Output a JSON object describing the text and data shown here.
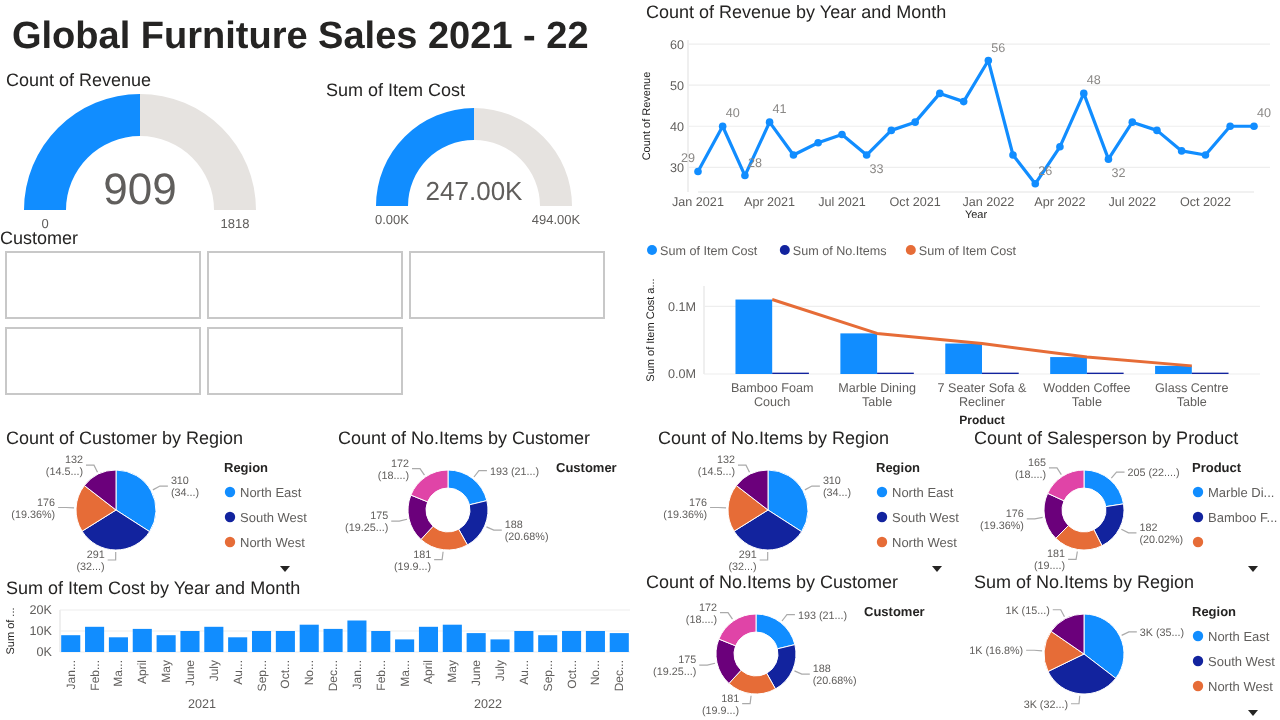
{
  "chart_data": [
    {
      "type": "other",
      "title": "Global Furniture Sales 2021 - 22"
    },
    {
      "type": "donut",
      "title": "Count of Revenue",
      "categories": [
        null,
        null
      ],
      "values": [
        909,
        909
      ],
      "colors": [
        "#118dff",
        "#e6e3e0"
      ],
      "value_labels": [
        "909",
        null
      ],
      "annotations": [
        "0",
        "1818"
      ]
    },
    {
      "type": "donut",
      "title": "Sum of Item Cost",
      "categories": [
        null,
        null
      ],
      "values": [
        247,
        247
      ],
      "colors": [
        "#118dff",
        "#e6e3e0"
      ],
      "value_labels": [
        "247.00K",
        null
      ],
      "annotations": [
        "0.00K",
        "494.00K"
      ]
    },
    {
      "type": "other",
      "title": "Customer",
      "categories": [
        null,
        null,
        null,
        null,
        null
      ]
    },
    {
      "type": "line",
      "title": "Count of Revenue by Year and Month",
      "xlabel": "Year",
      "ylabel": "Count of Revenue",
      "x": [
        "2021-01",
        "2021-02",
        "2021-03",
        "2021-04",
        "2021-05",
        "2021-06",
        "2021-07",
        "2021-08",
        "2021-09",
        "2021-10",
        "2021-11",
        "2021-12",
        "2022-01",
        "2022-02",
        "2022-03",
        "2022-04",
        "2022-05",
        "2022-06",
        "2022-07",
        "2022-08",
        "2022-09",
        "2022-10",
        "2022-11",
        "2022-12"
      ],
      "series": [
        {
          "color": "#118dff",
          "values": [
            29,
            40,
            28,
            41,
            33,
            36,
            38,
            33,
            39,
            41,
            48,
            46,
            56,
            33,
            26,
            35,
            48,
            32,
            41,
            39,
            34,
            33,
            40,
            40
          ]
        }
      ],
      "value_labels": [
        "29",
        "40",
        "28",
        "41",
        null,
        null,
        null,
        "33",
        null,
        null,
        null,
        null,
        "56",
        null,
        "26",
        null,
        "48",
        "32",
        null,
        null,
        null,
        null,
        null,
        "40"
      ],
      "xlim": [
        "2021-01",
        "2022-12"
      ],
      "xticks": [
        {
          "value": "2021-01",
          "label": "Jan 2021"
        },
        {
          "value": "2021-04",
          "label": "Apr 2021"
        },
        {
          "value": "2021-07",
          "label": "Jul 2021"
        },
        {
          "value": "2021-10",
          "label": "Oct 2021"
        },
        {
          "value": "2022-01",
          "label": "Jan 2022"
        },
        {
          "value": "2022-04",
          "label": "Apr 2022"
        },
        {
          "value": "2022-07",
          "label": "Jul 2022"
        },
        {
          "value": "2022-10",
          "label": "Oct 2022"
        }
      ],
      "ylim": [
        24,
        61
      ],
      "yticks": [
        30,
        40,
        50,
        60
      ],
      "grid": "y",
      "marker": "circle",
      "line_style": "solid"
    },
    {
      "type": "bar",
      "xlabel": "Product",
      "ylabel": "Sum of Item Cost a...",
      "categories": [
        "Bamboo Foam Couch",
        "Marble Dining Table",
        "7 Seater Sofa & Recliner",
        "Wodden Coffee Table",
        "Glass Centre Table"
      ],
      "series": [
        {
          "name": "Sum of Item Cost",
          "color": "#118dff",
          "values": [
            0.11,
            0.06,
            0.045,
            0.025,
            0.012
          ]
        },
        {
          "name": "Sum of No.Items",
          "color": "#12239e",
          "values": [
            0.002,
            0.002,
            0.002,
            0.002,
            0.002
          ]
        },
        {
          "name": "Sum of Item Cost",
          "color": "#e66c37",
          "type": "line",
          "values": [
            0.11,
            0.06,
            0.045,
            0.025,
            0.012
          ]
        }
      ],
      "ylim": [
        0,
        0.13
      ],
      "yticks": [
        {
          "value": 0,
          "label": "0.0M"
        },
        {
          "value": 0.1,
          "label": "0.1M"
        }
      ],
      "legend": "top left",
      "marker": "none"
    },
    {
      "type": "pie",
      "title": "Count of Customer by Region",
      "legend_title": "Region",
      "categories": [
        "North East",
        "South West",
        "North West",
        null
      ],
      "values": [
        310,
        291,
        176,
        132
      ],
      "colors": [
        "#118dff",
        "#12239e",
        "#e66c37",
        "#6b007b"
      ],
      "value_labels": [
        "310 (34...)",
        "291 (32...)",
        "176 (19.36%)",
        "132 (14.5...)"
      ],
      "legend": "right"
    },
    {
      "type": "donut",
      "title": "Count of No.Items by Customer",
      "legend_title": "Customer",
      "categories": [
        null,
        null,
        null,
        null,
        null
      ],
      "values": [
        193,
        188,
        181,
        175,
        172
      ],
      "colors": [
        "#118dff",
        "#12239e",
        "#e66c37",
        "#6b007b",
        "#e044a7"
      ],
      "value_labels": [
        "193 (21...)",
        "188 (20.68%)",
        "181 (19.9...)",
        "175 (19.25...)",
        "172 (18....)"
      ]
    },
    {
      "type": "bar",
      "title": "Sum of Item Cost by Year and Month",
      "ylabel": "Sum of ...",
      "categories": [
        "Jan...",
        "Feb...",
        "Ma...",
        "April",
        "May",
        "June",
        "July",
        "Au...",
        "Sep...",
        "Oct...",
        "No...",
        "Dec...",
        "Jan...",
        "Feb...",
        "Ma...",
        "April",
        "May",
        "June",
        "July",
        "Au...",
        "Sep...",
        "Oct...",
        "No...",
        "Dec..."
      ],
      "series": [
        {
          "color": "#118dff",
          "values": [
            8,
            12,
            7,
            11,
            8,
            10,
            12,
            7,
            10,
            10,
            13,
            11,
            15,
            10,
            6,
            12,
            13,
            9,
            6,
            10,
            8,
            10,
            10,
            9
          ]
        }
      ],
      "ylim": [
        0,
        20
      ],
      "yticks": [
        {
          "value": 0,
          "label": "0K"
        },
        {
          "value": 10,
          "label": "10K"
        },
        {
          "value": 20,
          "label": "20K"
        }
      ],
      "annotations": [
        "2021",
        "2022"
      ]
    },
    {
      "type": "pie",
      "title": "Count of No.Items by Region",
      "legend_title": "Region",
      "categories": [
        "North East",
        "South West",
        "North West",
        null
      ],
      "values": [
        310,
        291,
        176,
        132
      ],
      "colors": [
        "#118dff",
        "#12239e",
        "#e66c37",
        "#6b007b"
      ],
      "value_labels": [
        "310 (34...)",
        "291 (32...)",
        "176 (19.36%)",
        "132 (14.5...)"
      ],
      "legend": "right"
    },
    {
      "type": "donut",
      "title": "Count of Salesperson by Product",
      "legend_title": "Product",
      "categories": [
        "Marble Di...",
        "Bamboo F...",
        null,
        null,
        null
      ],
      "values": [
        205,
        182,
        181,
        176,
        165
      ],
      "colors": [
        "#118dff",
        "#12239e",
        "#e66c37",
        "#6b007b",
        "#e044a7"
      ],
      "value_labels": [
        "205 (22....)",
        "182 (20.02%)",
        "181 (19....)",
        "176 (19.36%)",
        "165 (18....)"
      ],
      "legend": "right"
    },
    {
      "type": "donut",
      "title": "Count of No.Items by Customer",
      "legend_title": "Customer",
      "categories": [
        null,
        null,
        null,
        null,
        null
      ],
      "values": [
        193,
        188,
        181,
        175,
        172
      ],
      "colors": [
        "#118dff",
        "#12239e",
        "#e66c37",
        "#6b007b",
        "#e044a7"
      ],
      "value_labels": [
        "193 (21...)",
        "188 (20.68%)",
        "181 (19.9...)",
        "175 (19.25...)",
        "172 (18....)"
      ]
    },
    {
      "type": "pie",
      "title": "Sum of No.Items by Region",
      "legend_title": "Region",
      "categories": [
        "North East",
        "South West",
        "North West",
        null
      ],
      "values": [
        35.4,
        32.4,
        16.8,
        15.4
      ],
      "colors": [
        "#118dff",
        "#12239e",
        "#e66c37",
        "#6b007b"
      ],
      "value_labels": [
        "3K (35...)",
        "3K (32...)",
        "1K (16.8%)",
        "1K (15...)"
      ],
      "legend": "right"
    }
  ]
}
